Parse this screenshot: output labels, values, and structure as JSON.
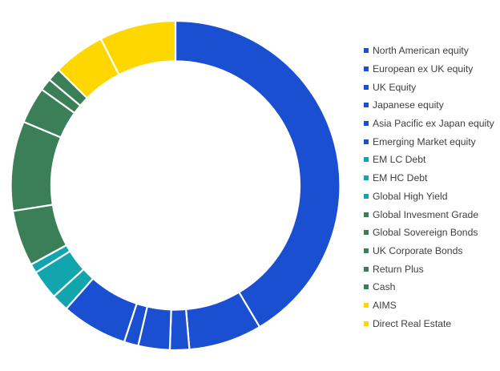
{
  "chart_data": {
    "type": "pie",
    "subtype": "donut",
    "title": "",
    "legend_position": "right",
    "start_angle_deg": 0,
    "direction": "clockwise",
    "categories": [
      "North American equity",
      "European ex UK equity",
      "UK Equity",
      "Japanese equity",
      "Asia Pacific ex Japan equity",
      "Emerging Market equity",
      "EM LC Debt",
      "EM HC Debt",
      "Global High Yield",
      "Global Invesment Grade",
      "Global Sovereign Bonds",
      "UK Corporate Bonds",
      "Return Plus",
      "Cash",
      "AIMS",
      "Direct Real Estate"
    ],
    "values": [
      41.5,
      7.2,
      1.9,
      3.1,
      1.4,
      6.5,
      1.7,
      2.9,
      0.9,
      5.5,
      8.8,
      3.6,
      1.2,
      1.3,
      5.1,
      7.5
    ],
    "value_unit": "% (estimated from arc angles)",
    "colors": [
      "#1B4FD1",
      "#1B4FD1",
      "#1B4FD1",
      "#1B4FD1",
      "#1B4FD1",
      "#1B4FD1",
      "#12A5AE",
      "#12A5AE",
      "#12A5AE",
      "#3A7F57",
      "#3A7F57",
      "#3A7F57",
      "#3A7F57",
      "#3A7F57",
      "#FFD700",
      "#FFD700"
    ]
  },
  "legend": {
    "items": [
      {
        "label": "North American equity",
        "color": "#1B4FD1"
      },
      {
        "label": "European ex UK equity",
        "color": "#1B4FD1"
      },
      {
        "label": "UK Equity",
        "color": "#1B4FD1"
      },
      {
        "label": "Japanese equity",
        "color": "#1B4FD1"
      },
      {
        "label": "Asia Pacific ex Japan equity",
        "color": "#1B4FD1"
      },
      {
        "label": "Emerging Market equity",
        "color": "#1B4FD1"
      },
      {
        "label": "EM LC Debt",
        "color": "#12A5AE"
      },
      {
        "label": "EM HC Debt",
        "color": "#12A5AE"
      },
      {
        "label": "Global High Yield",
        "color": "#12A5AE"
      },
      {
        "label": "Global Invesment Grade",
        "color": "#3A7F57"
      },
      {
        "label": "Global Sovereign Bonds",
        "color": "#3A7F57"
      },
      {
        "label": "UK Corporate Bonds",
        "color": "#3A7F57"
      },
      {
        "label": "Return Plus",
        "color": "#3A7F57"
      },
      {
        "label": "Cash",
        "color": "#3A7F57"
      },
      {
        "label": "AIMS",
        "color": "#FFD700"
      },
      {
        "label": "Direct Real Estate",
        "color": "#FFD700"
      }
    ]
  }
}
